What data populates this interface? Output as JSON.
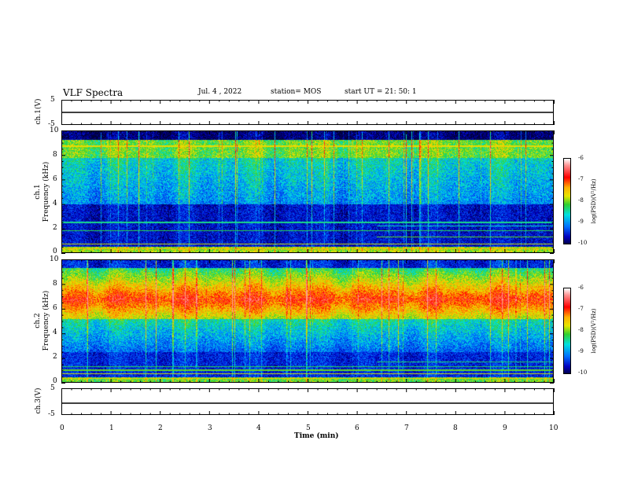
{
  "header": {
    "title": "VLF Spectra",
    "date": "Jul. 4 , 2022",
    "station": "station= MOS",
    "start_ut": "start UT = 21: 50: 1"
  },
  "panels": {
    "ch1_voltage": {
      "ylabel": "ch.1(V)",
      "yticks": [
        "5",
        "-5"
      ]
    },
    "ch1_spectrogram": {
      "ylabel_line1": "ch.1",
      "ylabel_line2": "Frequency (kHz)",
      "yticks": [
        "10",
        "8",
        "6",
        "4",
        "2",
        "0"
      ],
      "cbar_label": "log(PSD)(V²/Hz)",
      "cbar_ticks": [
        "-6",
        "-7",
        "-8",
        "-9",
        "-10"
      ]
    },
    "ch2_spectrogram": {
      "ylabel_line1": "ch.2",
      "ylabel_line2": "Frequency (kHz)",
      "yticks": [
        "10",
        "8",
        "6",
        "4",
        "2",
        "0"
      ],
      "cbar_label": "log(PSD)(V²/Hz)",
      "cbar_ticks": [
        "-6",
        "-7",
        "-8",
        "-9",
        "-10"
      ]
    },
    "ch3_voltage": {
      "ylabel": "ch.3(V)",
      "yticks": [
        "5",
        "-5"
      ]
    }
  },
  "xaxis": {
    "label": "Time (min)",
    "ticks": [
      "0",
      "1",
      "2",
      "3",
      "4",
      "5",
      "6",
      "7",
      "8",
      "9",
      "10"
    ]
  },
  "colors": {
    "low": "#000050",
    "blue": "#0000c0",
    "cyan": "#00e0e0",
    "green": "#30d030",
    "yellow": "#e6e600",
    "red": "#ff0000",
    "high": "#ffffff"
  }
}
